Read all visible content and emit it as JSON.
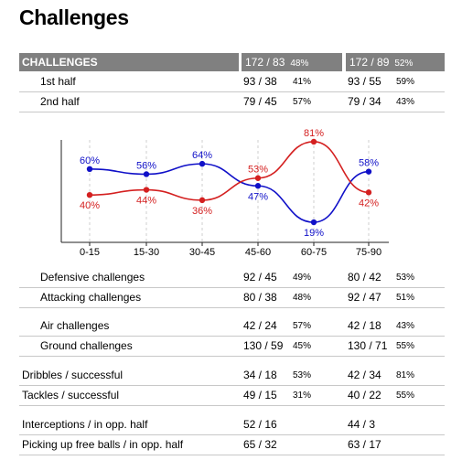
{
  "page_title": "Challenges",
  "header": {
    "label": "CHALLENGES",
    "v1": "172 / 83",
    "p1": "48%",
    "v2": "172 / 89",
    "p2": "52%"
  },
  "top_rows": [
    {
      "label": "1st half",
      "v1": "93 / 38",
      "p1": "41%",
      "v2": "93 / 55",
      "p2": "59%"
    },
    {
      "label": "2nd half",
      "v1": "79 / 45",
      "p1": "57%",
      "v2": "79 / 34",
      "p2": "43%"
    }
  ],
  "chart_data": {
    "type": "line",
    "categories": [
      "0-15",
      "15-30",
      "30-45",
      "45-60",
      "60-75",
      "75-90"
    ],
    "series": [
      {
        "color": "#1010c8",
        "values": [
          60,
          56,
          64,
          47,
          19,
          58
        ],
        "labels": [
          "60%",
          "56%",
          "64%",
          "47%",
          "19%",
          "58%"
        ]
      },
      {
        "color": "#d42020",
        "values": [
          40,
          44,
          36,
          53,
          81,
          42
        ],
        "labels": [
          "40%",
          "44%",
          "36%",
          "53%",
          "81%",
          "42%"
        ]
      }
    ],
    "ylim": [
      0,
      100
    ],
    "grid": true
  },
  "bottom_rows": [
    {
      "label": "Defensive challenges",
      "indent": true,
      "v1": "92 / 45",
      "p1": "49%",
      "v2": "80 / 42",
      "p2": "53%"
    },
    {
      "label": "Attacking challenges",
      "indent": true,
      "v1": "80 / 38",
      "p1": "48%",
      "v2": "92 / 47",
      "p2": "51%"
    },
    {
      "label": "Air challenges",
      "indent": true,
      "v1": "42 / 24",
      "p1": "57%",
      "v2": "42 / 18",
      "p2": "43%"
    },
    {
      "label": "Ground challenges",
      "indent": true,
      "v1": "130 / 59",
      "p1": "45%",
      "v2": "130 / 71",
      "p2": "55%"
    },
    {
      "label": "Dribbles / successful",
      "indent": false,
      "v1": "34 / 18",
      "p1": "53%",
      "v2": "42 / 34",
      "p2": "81%"
    },
    {
      "label": "Tackles / successful",
      "indent": false,
      "v1": "49 / 15",
      "p1": "31%",
      "v2": "40 / 22",
      "p2": "55%"
    },
    {
      "label": "Interceptions / in opp. half",
      "indent": false,
      "v1": "52 / 16",
      "p1": "",
      "v2": "44 / 3",
      "p2": ""
    },
    {
      "label": "Picking up free balls / in opp. half",
      "indent": false,
      "v1": "65 / 32",
      "p1": "",
      "v2": "63 / 17",
      "p2": ""
    }
  ]
}
